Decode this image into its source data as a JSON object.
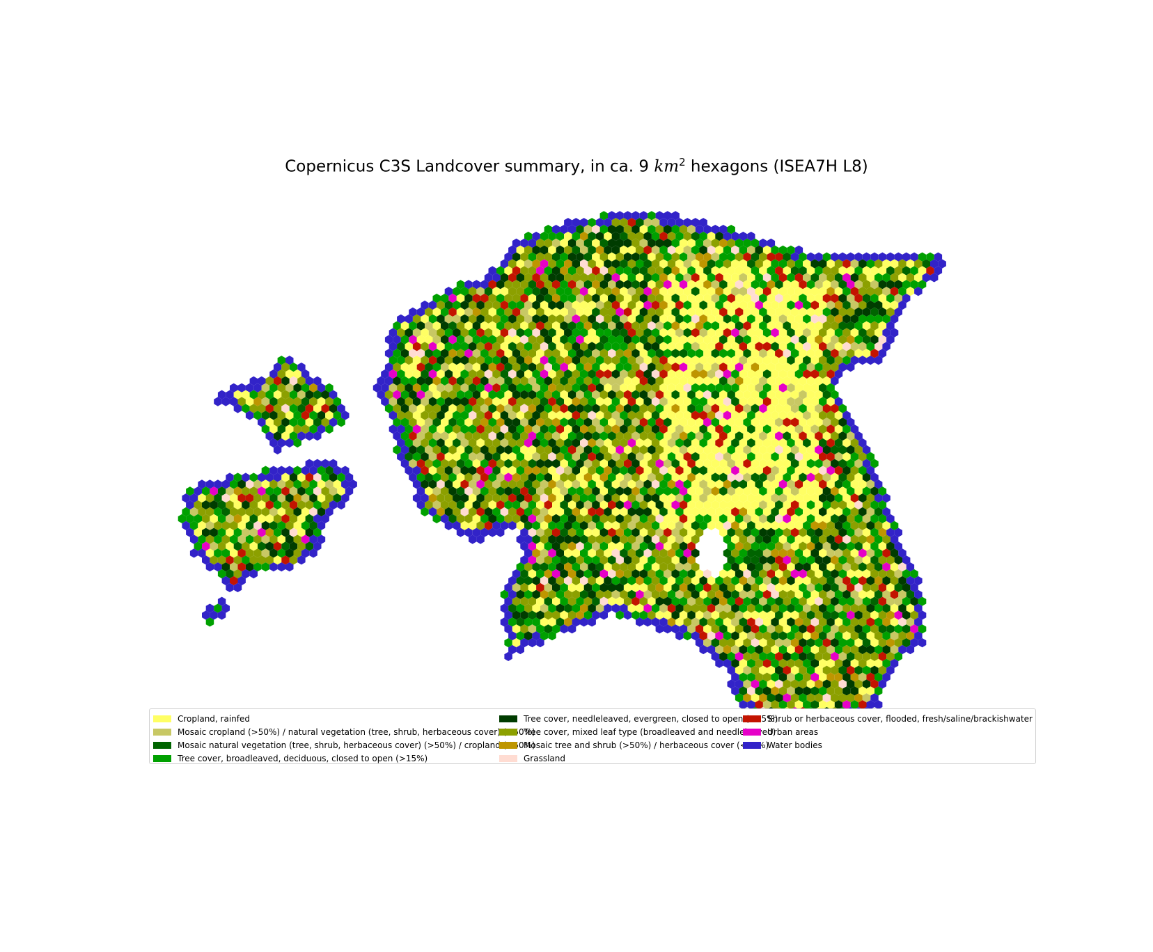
{
  "title": {
    "prefix": "Copernicus C3S Landcover summary, in ca. 9 ",
    "unit": "km",
    "exponent": "2",
    "suffix": " hexagons (ISEA7H L8)"
  },
  "legend": {
    "items": [
      {
        "label": "Cropland, rainfed",
        "color": "#ffff64"
      },
      {
        "label": "Mosaic cropland (>50%) / natural vegetation (tree, shrub, herbaceous cover) (<50%)",
        "color": "#c8c864"
      },
      {
        "label": "Mosaic natural vegetation (tree, shrub, herbaceous cover) (>50%) / cropland (<50%)",
        "color": "#006400"
      },
      {
        "label": "Tree cover, broadleaved, deciduous, closed to open (>15%)",
        "color": "#00a000"
      },
      {
        "label": "Tree cover, needleleaved, evergreen, closed to open (>15%)",
        "color": "#003c00"
      },
      {
        "label": "Tree cover, mixed leaf type (broadleaved and needleleaved)",
        "color": "#8ca000"
      },
      {
        "label": "Mosaic tree and shrub (>50%) / herbaceous cover (<50%)",
        "color": "#be9600"
      },
      {
        "label": "Grassland",
        "color": "#ffdcd2"
      },
      {
        "label": "Shrub or herbaceous cover, flooded, fresh/saline/brackishwater",
        "color": "#c31400"
      },
      {
        "label": "Urban areas",
        "color": "#e600c8"
      },
      {
        "label": "Water bodies",
        "color": "#3223c8"
      }
    ]
  }
}
